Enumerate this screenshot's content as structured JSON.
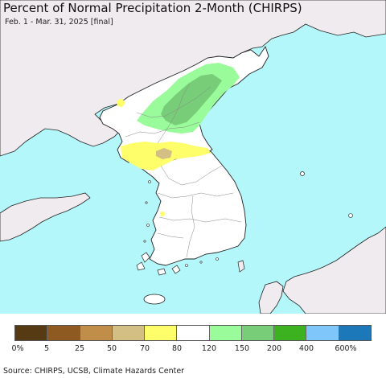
{
  "title": "Percent of Normal Precipitation 2-Month (CHIRPS)",
  "subtitle": "Feb. 1 - Mar. 31, 2025 [final]",
  "colors": {
    "ocean": "#b3f7fb",
    "land_outside": "#efebee",
    "land_country": "#ffffff",
    "border": "#222222",
    "admin_border": "#888888"
  },
  "legend": {
    "colors": [
      "#553a14",
      "#8e5a22",
      "#c18e4a",
      "#d3be84",
      "#fdfe6a",
      "#ffffff",
      "#9afb9a",
      "#78cd78",
      "#3cb220",
      "#7fc6fb",
      "#1c78b8"
    ],
    "labels": [
      "0%",
      "5",
      "25",
      "50",
      "70",
      "80",
      "120",
      "150",
      "200",
      "400",
      "600%"
    ]
  },
  "source": "Source: CHIRPS, UCSB, Climate Hazards Center"
}
